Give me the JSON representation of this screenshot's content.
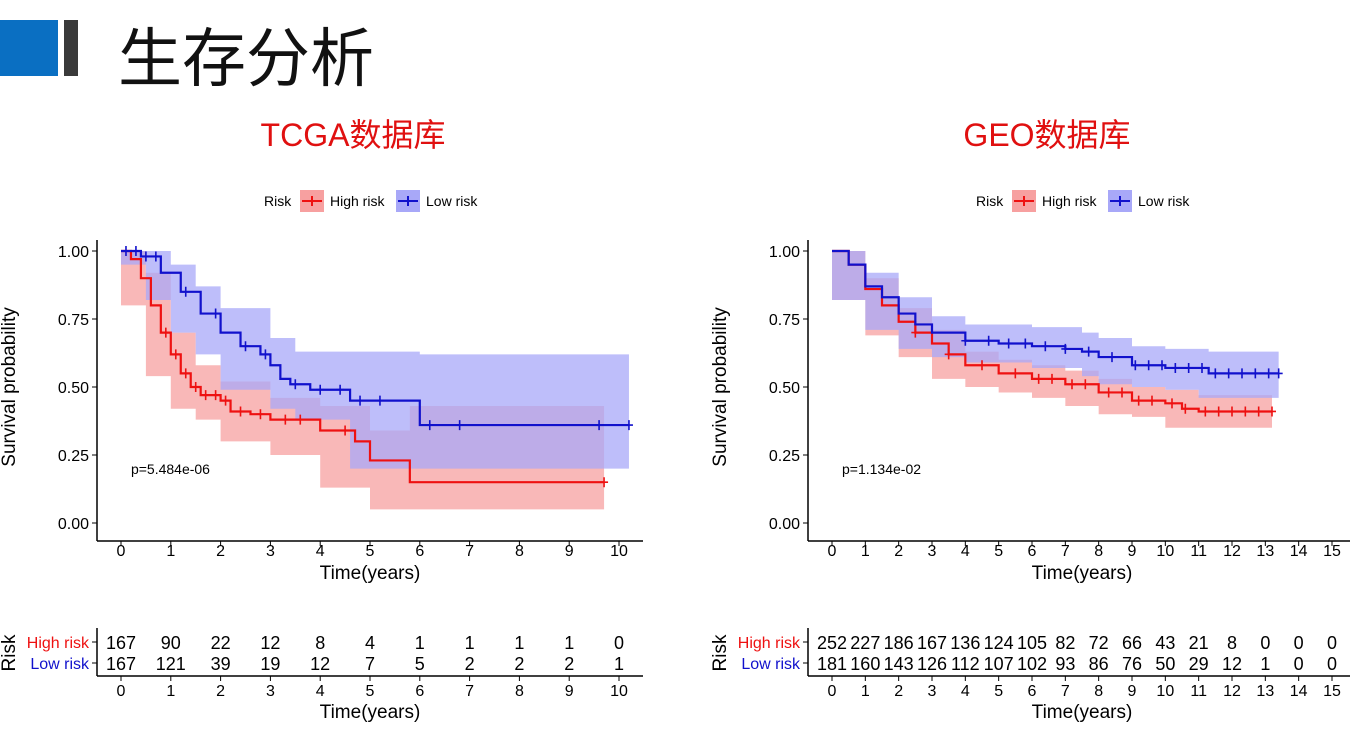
{
  "header": {
    "title": "生存分析"
  },
  "colors": {
    "high": "#ee1111",
    "low": "#1111cc",
    "high_ci": "#f7a0a0",
    "low_ci": "#a8a8f8",
    "title": "#e01010",
    "accent": "#0a6fc2"
  },
  "chart_data": [
    {
      "type": "line",
      "subtype": "kaplan-meier",
      "title": "TCGA数据库",
      "legend_title": "Risk",
      "legend_position": "top",
      "xlabel": "Time(years)",
      "ylabel": "Survival probability",
      "xlim": [
        0,
        10
      ],
      "ylim": [
        0,
        1
      ],
      "xticks": [
        "0",
        "1",
        "2",
        "3",
        "4",
        "5",
        "6",
        "7",
        "8",
        "9",
        "10"
      ],
      "yticks": [
        "0.00",
        "0.25",
        "0.50",
        "0.75",
        "1.00"
      ],
      "pvalue": "p=5.484e-06",
      "series": [
        {
          "name": "High risk",
          "points": [
            [
              0,
              1
            ],
            [
              0.2,
              0.97
            ],
            [
              0.4,
              0.9
            ],
            [
              0.6,
              0.8
            ],
            [
              0.8,
              0.7
            ],
            [
              1,
              0.62
            ],
            [
              1.2,
              0.55
            ],
            [
              1.4,
              0.5
            ],
            [
              1.6,
              0.47
            ],
            [
              2,
              0.45
            ],
            [
              2.2,
              0.41
            ],
            [
              2.6,
              0.4
            ],
            [
              3,
              0.38
            ],
            [
              3.8,
              0.38
            ],
            [
              4,
              0.34
            ],
            [
              4.7,
              0.3
            ],
            [
              5,
              0.23
            ],
            [
              5.8,
              0.15
            ],
            [
              9.7,
              0.15
            ]
          ],
          "ci_upper": [
            [
              0,
              1
            ],
            [
              0.5,
              0.92
            ],
            [
              1,
              0.7
            ],
            [
              1.5,
              0.58
            ],
            [
              2,
              0.52
            ],
            [
              3,
              0.46
            ],
            [
              4,
              0.43
            ],
            [
              5,
              0.34
            ],
            [
              5.8,
              0.43
            ],
            [
              9.7,
              0.43
            ]
          ],
          "ci_lower": [
            [
              0,
              1
            ],
            [
              0.5,
              0.8
            ],
            [
              1,
              0.54
            ],
            [
              1.5,
              0.42
            ],
            [
              2,
              0.38
            ],
            [
              3,
              0.3
            ],
            [
              4,
              0.25
            ],
            [
              5,
              0.13
            ],
            [
              5.8,
              0.05
            ],
            [
              9.7,
              0.05
            ]
          ],
          "censored": [
            0.9,
            1.1,
            1.3,
            1.5,
            1.7,
            1.9,
            2.1,
            2.4,
            2.8,
            3.3,
            3.6,
            4.5,
            9.7
          ]
        },
        {
          "name": "Low risk",
          "points": [
            [
              0,
              1
            ],
            [
              0.4,
              0.98
            ],
            [
              0.8,
              0.92
            ],
            [
              1.2,
              0.85
            ],
            [
              1.6,
              0.77
            ],
            [
              2,
              0.7
            ],
            [
              2.4,
              0.65
            ],
            [
              2.8,
              0.62
            ],
            [
              3,
              0.58
            ],
            [
              3.2,
              0.53
            ],
            [
              3.4,
              0.51
            ],
            [
              3.8,
              0.49
            ],
            [
              4.6,
              0.49
            ],
            [
              4.6,
              0.45
            ],
            [
              6,
              0.45
            ],
            [
              6,
              0.36
            ],
            [
              10.2,
              0.36
            ]
          ],
          "ci_upper": [
            [
              0,
              1
            ],
            [
              0.5,
              1
            ],
            [
              1,
              0.95
            ],
            [
              1.5,
              0.87
            ],
            [
              2,
              0.79
            ],
            [
              3,
              0.68
            ],
            [
              3.5,
              0.63
            ],
            [
              4.6,
              0.63
            ],
            [
              6,
              0.62
            ],
            [
              10.2,
              0.62
            ]
          ],
          "ci_lower": [
            [
              0,
              1
            ],
            [
              0.5,
              0.95
            ],
            [
              1,
              0.82
            ],
            [
              1.5,
              0.7
            ],
            [
              2,
              0.62
            ],
            [
              3,
              0.49
            ],
            [
              3.5,
              0.42
            ],
            [
              4.6,
              0.38
            ],
            [
              6,
              0.2
            ],
            [
              10.2,
              0.2
            ]
          ],
          "censored": [
            0.1,
            0.3,
            0.5,
            0.7,
            1.3,
            1.9,
            2.5,
            2.9,
            3.5,
            4.0,
            4.4,
            4.8,
            5.2,
            6.2,
            6.8,
            9.6,
            10.2
          ]
        }
      ],
      "risk_table": {
        "title": "Risk",
        "xlabel": "Time(years)",
        "times": [
          0,
          1,
          2,
          3,
          4,
          5,
          6,
          7,
          8,
          9,
          10
        ],
        "rows": [
          {
            "name": "High risk",
            "values": [
              167,
              90,
              22,
              12,
              8,
              4,
              1,
              1,
              1,
              1,
              0
            ]
          },
          {
            "name": "Low risk",
            "values": [
              167,
              121,
              39,
              19,
              12,
              7,
              5,
              2,
              2,
              2,
              1
            ]
          }
        ]
      }
    },
    {
      "type": "line",
      "subtype": "kaplan-meier",
      "title": "GEO数据库",
      "legend_title": "Risk",
      "legend_position": "top",
      "xlabel": "Time(years)",
      "ylabel": "Survival probability",
      "xlim": [
        0,
        15
      ],
      "ylim": [
        0,
        1
      ],
      "xticks": [
        "0",
        "1",
        "2",
        "3",
        "4",
        "5",
        "6",
        "7",
        "8",
        "9",
        "10",
        "11",
        "12",
        "13",
        "14",
        "15"
      ],
      "yticks": [
        "0.00",
        "0.25",
        "0.50",
        "0.75",
        "1.00"
      ],
      "pvalue": "p=1.134e-02",
      "series": [
        {
          "name": "High risk",
          "points": [
            [
              0,
              1
            ],
            [
              0.5,
              0.95
            ],
            [
              1,
              0.86
            ],
            [
              1.5,
              0.8
            ],
            [
              2,
              0.74
            ],
            [
              2.5,
              0.7
            ],
            [
              3,
              0.66
            ],
            [
              3.5,
              0.62
            ],
            [
              4,
              0.58
            ],
            [
              5,
              0.55
            ],
            [
              6,
              0.53
            ],
            [
              7,
              0.51
            ],
            [
              8,
              0.48
            ],
            [
              9,
              0.45
            ],
            [
              10,
              0.44
            ],
            [
              10.5,
              0.42
            ],
            [
              11,
              0.41
            ],
            [
              13.2,
              0.41
            ]
          ],
          "ci_upper": [
            [
              0,
              1
            ],
            [
              1,
              0.9
            ],
            [
              2,
              0.79
            ],
            [
              3,
              0.71
            ],
            [
              4,
              0.63
            ],
            [
              5,
              0.6
            ],
            [
              6,
              0.58
            ],
            [
              7,
              0.56
            ],
            [
              8,
              0.53
            ],
            [
              9,
              0.5
            ],
            [
              10,
              0.49
            ],
            [
              11,
              0.47
            ],
            [
              13.2,
              0.47
            ]
          ],
          "ci_lower": [
            [
              0,
              1
            ],
            [
              1,
              0.82
            ],
            [
              2,
              0.69
            ],
            [
              3,
              0.61
            ],
            [
              4,
              0.53
            ],
            [
              5,
              0.5
            ],
            [
              6,
              0.48
            ],
            [
              7,
              0.46
            ],
            [
              8,
              0.43
            ],
            [
              9,
              0.4
            ],
            [
              10,
              0.39
            ],
            [
              11,
              0.35
            ],
            [
              13.2,
              0.35
            ]
          ],
          "censored": [
            2.5,
            3.5,
            4.5,
            5.5,
            6.2,
            6.6,
            7.2,
            7.6,
            8.3,
            8.7,
            9.2,
            9.6,
            10.2,
            10.6,
            11.2,
            11.6,
            12.0,
            12.4,
            12.8,
            13.2
          ]
        },
        {
          "name": "Low risk",
          "points": [
            [
              0,
              1
            ],
            [
              0.5,
              0.95
            ],
            [
              1,
              0.87
            ],
            [
              1.5,
              0.83
            ],
            [
              2,
              0.77
            ],
            [
              2.5,
              0.73
            ],
            [
              3,
              0.7
            ],
            [
              4,
              0.67
            ],
            [
              5,
              0.66
            ],
            [
              6,
              0.65
            ],
            [
              7,
              0.64
            ],
            [
              7.5,
              0.63
            ],
            [
              8,
              0.61
            ],
            [
              9,
              0.58
            ],
            [
              10,
              0.57
            ],
            [
              11,
              0.57
            ],
            [
              11.3,
              0.55
            ],
            [
              13.4,
              0.55
            ]
          ],
          "ci_upper": [
            [
              0,
              1
            ],
            [
              1,
              0.92
            ],
            [
              2,
              0.83
            ],
            [
              3,
              0.76
            ],
            [
              4,
              0.73
            ],
            [
              6,
              0.72
            ],
            [
              7.5,
              0.7
            ],
            [
              8,
              0.68
            ],
            [
              9,
              0.65
            ],
            [
              10,
              0.64
            ],
            [
              11,
              0.64
            ],
            [
              11.3,
              0.63
            ],
            [
              13.4,
              0.63
            ]
          ],
          "ci_lower": [
            [
              0,
              1
            ],
            [
              1,
              0.82
            ],
            [
              2,
              0.71
            ],
            [
              3,
              0.64
            ],
            [
              4,
              0.61
            ],
            [
              6,
              0.59
            ],
            [
              7.5,
              0.57
            ],
            [
              8,
              0.54
            ],
            [
              9,
              0.51
            ],
            [
              10,
              0.5
            ],
            [
              11,
              0.49
            ],
            [
              11.3,
              0.46
            ],
            [
              13.4,
              0.46
            ]
          ],
          "censored": [
            4,
            4.7,
            5.3,
            5.8,
            6.4,
            7.0,
            7.7,
            8.4,
            9.1,
            9.5,
            9.9,
            10.3,
            10.7,
            11.1,
            11.5,
            11.9,
            12.3,
            12.7,
            13.1,
            13.4
          ]
        }
      ],
      "risk_table": {
        "title": "Risk",
        "xlabel": "Time(years)",
        "times": [
          0,
          1,
          2,
          3,
          4,
          5,
          6,
          7,
          8,
          9,
          10,
          11,
          12,
          13,
          14,
          15
        ],
        "rows": [
          {
            "name": "High risk",
            "values": [
              252,
              227,
              186,
              167,
              136,
              124,
              105,
              82,
              72,
              66,
              43,
              21,
              8,
              0,
              0,
              0
            ]
          },
          {
            "name": "Low risk",
            "values": [
              181,
              160,
              143,
              126,
              112,
              107,
              102,
              93,
              86,
              76,
              50,
              29,
              12,
              1,
              0,
              0
            ]
          }
        ]
      }
    }
  ]
}
